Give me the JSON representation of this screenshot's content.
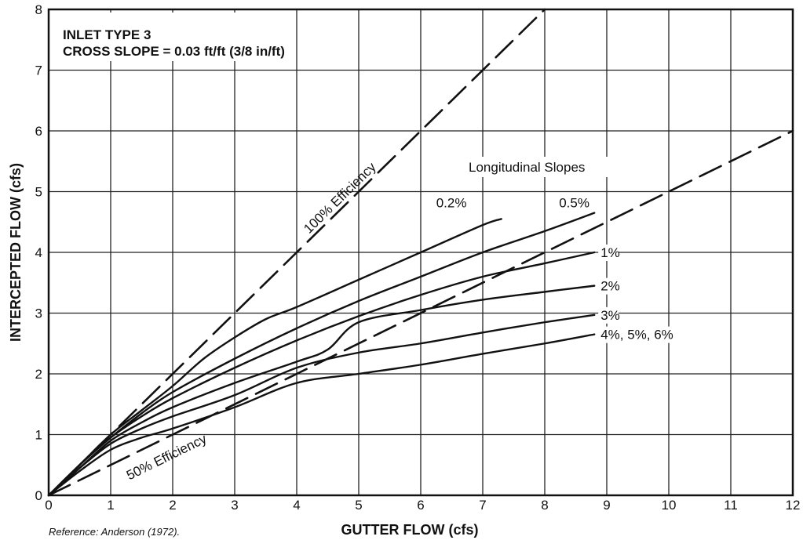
{
  "chart_data": {
    "type": "line",
    "title": "INLET TYPE 3",
    "subtitle": "CROSS SLOPE = 0.03 ft/ft (3/8 in/ft)",
    "xlabel": "GUTTER FLOW (cfs)",
    "ylabel": "INTERCEPTED FLOW (cfs)",
    "xlim": [
      0,
      12
    ],
    "ylim": [
      0,
      8
    ],
    "x_ticks": [
      "0",
      "1",
      "2",
      "3",
      "4",
      "5",
      "6",
      "7",
      "8",
      "9",
      "10",
      "11",
      "12"
    ],
    "y_ticks": [
      "0",
      "1",
      "2",
      "3",
      "4",
      "5",
      "6",
      "7",
      "8"
    ],
    "grid": true,
    "reference": "Reference: Anderson (1972).",
    "curves_heading": "Longitudinal Slopes",
    "series": [
      {
        "name": "0.2%",
        "label": "0.2%",
        "style": "solid",
        "points": [
          [
            0,
            0
          ],
          [
            0.5,
            0.5
          ],
          [
            1,
            1.0
          ],
          [
            1.5,
            1.4
          ],
          [
            2,
            1.8
          ],
          [
            2.5,
            2.25
          ],
          [
            3,
            2.6
          ],
          [
            3.5,
            2.9
          ],
          [
            4,
            3.1
          ],
          [
            5,
            3.55
          ],
          [
            6,
            4.0
          ],
          [
            7,
            4.45
          ],
          [
            7.3,
            4.55
          ]
        ]
      },
      {
        "name": "0.5%",
        "label": "0.5%",
        "style": "solid",
        "points": [
          [
            0,
            0
          ],
          [
            0.5,
            0.5
          ],
          [
            1,
            0.95
          ],
          [
            1.5,
            1.35
          ],
          [
            2,
            1.7
          ],
          [
            3,
            2.25
          ],
          [
            4,
            2.75
          ],
          [
            5,
            3.2
          ],
          [
            6,
            3.6
          ],
          [
            7,
            4.0
          ],
          [
            8,
            4.35
          ],
          [
            8.8,
            4.65
          ]
        ]
      },
      {
        "name": "1%",
        "label": "1%",
        "style": "solid",
        "points": [
          [
            0,
            0
          ],
          [
            0.5,
            0.5
          ],
          [
            1,
            0.95
          ],
          [
            1.5,
            1.3
          ],
          [
            2,
            1.6
          ],
          [
            3,
            2.1
          ],
          [
            4,
            2.55
          ],
          [
            5,
            2.95
          ],
          [
            6,
            3.3
          ],
          [
            7,
            3.6
          ],
          [
            8,
            3.82
          ],
          [
            8.8,
            4.0
          ]
        ]
      },
      {
        "name": "2%",
        "label": "2%",
        "style": "solid",
        "points": [
          [
            0,
            0
          ],
          [
            0.5,
            0.45
          ],
          [
            1,
            0.9
          ],
          [
            1.5,
            1.2
          ],
          [
            2,
            1.45
          ],
          [
            3,
            1.85
          ],
          [
            4,
            2.2
          ],
          [
            4.5,
            2.4
          ],
          [
            5,
            2.85
          ],
          [
            6,
            3.05
          ],
          [
            7,
            3.22
          ],
          [
            8,
            3.35
          ],
          [
            8.8,
            3.45
          ]
        ]
      },
      {
        "name": "3%",
        "label": "3%",
        "style": "solid",
        "points": [
          [
            0,
            0
          ],
          [
            0.5,
            0.45
          ],
          [
            1,
            0.85
          ],
          [
            1.5,
            1.1
          ],
          [
            2,
            1.3
          ],
          [
            3,
            1.65
          ],
          [
            4,
            2.1
          ],
          [
            5,
            2.35
          ],
          [
            6,
            2.5
          ],
          [
            7,
            2.68
          ],
          [
            8,
            2.85
          ],
          [
            8.8,
            2.97
          ]
        ]
      },
      {
        "name": "4%, 5%, 6%",
        "label": "4%, 5%, 6%",
        "style": "solid",
        "points": [
          [
            0,
            0
          ],
          [
            0.5,
            0.4
          ],
          [
            1,
            0.75
          ],
          [
            1.5,
            0.95
          ],
          [
            2,
            1.1
          ],
          [
            3,
            1.45
          ],
          [
            4,
            1.85
          ],
          [
            5,
            2.0
          ],
          [
            6,
            2.15
          ],
          [
            7,
            2.33
          ],
          [
            8,
            2.5
          ],
          [
            8.8,
            2.65
          ]
        ]
      },
      {
        "name": "100% Efficiency",
        "label": "100% Efficiency",
        "style": "dashed",
        "points": [
          [
            0,
            0
          ],
          [
            8,
            8
          ]
        ]
      },
      {
        "name": "50% Efficiency",
        "label": "50% Efficiency",
        "style": "dashed",
        "points": [
          [
            0,
            0
          ],
          [
            12,
            6
          ]
        ]
      }
    ]
  }
}
